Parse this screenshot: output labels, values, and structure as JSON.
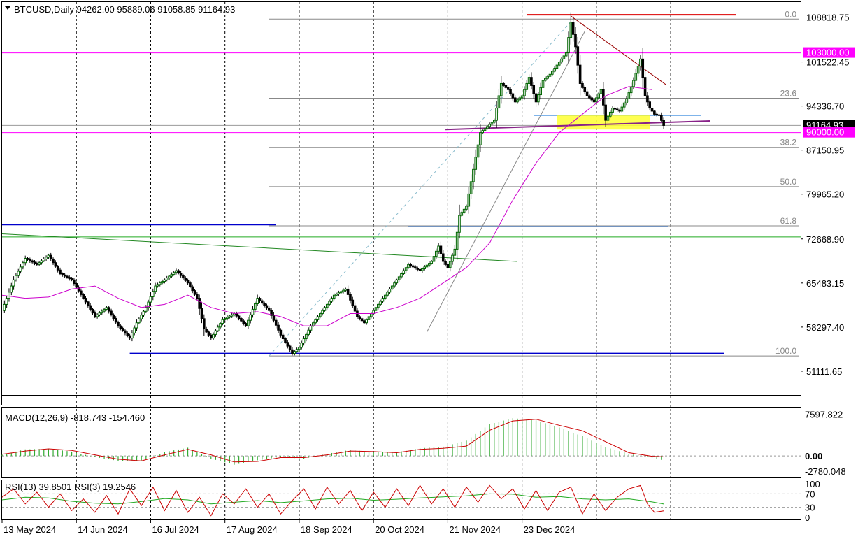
{
  "main": {
    "header": "BTCUSD,Daily  94262.00 95889.06 91058.85 91164.93"
  },
  "chart_data": [
    {
      "type": "candlestick",
      "symbol": "BTCUSD",
      "timeframe": "Daily",
      "ohlc_latest": {
        "open": 94262.0,
        "high": 95889.06,
        "low": 91058.85,
        "close": 91164.93
      },
      "y_ticks": [
        "108818.75",
        "101522.45",
        "94336.70",
        "87150.95",
        "79965.20",
        "72668.90",
        "65483.15",
        "58297.40",
        "51111.65"
      ],
      "ylim": [
        47800,
        110700
      ],
      "x_ticks": [
        "13 May 2024",
        "14 Jun 2024",
        "16 Jul 2024",
        "17 Aug 2024",
        "18 Sep 2024",
        "20 Oct 2024",
        "21 Nov 2024",
        "23 Dec 2024"
      ],
      "price_labels": [
        {
          "text": "103000.00",
          "value": 103000,
          "color": "#ff00ff",
          "role": "horizontal-level"
        },
        {
          "text": "91164.93",
          "value": 91164.93,
          "color": "#000000",
          "role": "last-price"
        },
        {
          "text": "90000.00",
          "value": 90000,
          "color": "#ff00ff",
          "role": "horizontal-level"
        }
      ],
      "fib_levels": [
        {
          "label": "0.0",
          "value": 108500
        },
        {
          "label": "23.6",
          "value": 95600
        },
        {
          "label": "38.2",
          "value": 87600
        },
        {
          "label": "50.0",
          "value": 81200
        },
        {
          "label": "61.8",
          "value": 74800
        },
        {
          "label": "100.0",
          "value": 53600
        }
      ],
      "close_path": [
        [
          0,
          61000
        ],
        [
          5,
          66000
        ],
        [
          10,
          69500
        ],
        [
          15,
          68500
        ],
        [
          20,
          70000
        ],
        [
          25,
          67000
        ],
        [
          30,
          66000
        ],
        [
          35,
          63000
        ],
        [
          40,
          60000
        ],
        [
          45,
          61500
        ],
        [
          50,
          58500
        ],
        [
          55,
          56500
        ],
        [
          58,
          59000
        ],
        [
          62,
          61500
        ],
        [
          66,
          65000
        ],
        [
          70,
          66000
        ],
        [
          75,
          67500
        ],
        [
          80,
          65500
        ],
        [
          84,
          63000
        ],
        [
          87,
          58000
        ],
        [
          90,
          56500
        ],
        [
          95,
          59500
        ],
        [
          100,
          60500
        ],
        [
          105,
          58500
        ],
        [
          110,
          63000
        ],
        [
          115,
          61000
        ],
        [
          120,
          57000
        ],
        [
          125,
          54000
        ],
        [
          128,
          55000
        ],
        [
          133,
          58500
        ],
        [
          138,
          61000
        ],
        [
          143,
          63500
        ],
        [
          148,
          64500
        ],
        [
          153,
          60000
        ],
        [
          156,
          59000
        ],
        [
          160,
          61000
        ],
        [
          165,
          63500
        ],
        [
          170,
          66000
        ],
        [
          175,
          68500
        ],
        [
          180,
          67500
        ],
        [
          185,
          69000
        ],
        [
          188,
          71500
        ],
        [
          190,
          69000
        ],
        [
          192,
          68000
        ],
        [
          195,
          71000
        ],
        [
          197,
          76500
        ],
        [
          200,
          78000
        ],
        [
          203,
          84000
        ],
        [
          206,
          90000
        ],
        [
          209,
          91000
        ],
        [
          212,
          92000
        ],
        [
          215,
          98000
        ],
        [
          218,
          97000
        ],
        [
          221,
          95000
        ],
        [
          224,
          96000
        ],
        [
          227,
          99000
        ],
        [
          230,
          95000
        ],
        [
          233,
          98500
        ],
        [
          236,
          99500
        ],
        [
          240,
          101500
        ],
        [
          243,
          103000
        ],
        [
          245,
          108000
        ],
        [
          247,
          104000
        ],
        [
          249,
          98000
        ],
        [
          252,
          96000
        ],
        [
          255,
          95000
        ],
        [
          258,
          97000
        ],
        [
          260,
          92000
        ],
        [
          263,
          94000
        ],
        [
          266,
          93500
        ],
        [
          269,
          95500
        ],
        [
          272,
          98500
        ],
        [
          275,
          102000
        ],
        [
          277,
          96000
        ],
        [
          279,
          94000
        ],
        [
          281,
          93000
        ],
        [
          283,
          92800
        ],
        [
          285,
          91164.93
        ]
      ],
      "sma_path": [
        [
          0,
          63500
        ],
        [
          10,
          63000
        ],
        [
          20,
          63200
        ],
        [
          30,
          64500
        ],
        [
          40,
          65000
        ],
        [
          50,
          63000
        ],
        [
          60,
          61500
        ],
        [
          70,
          62000
        ],
        [
          80,
          63500
        ],
        [
          90,
          61500
        ],
        [
          100,
          60500
        ],
        [
          110,
          60800
        ],
        [
          120,
          60000
        ],
        [
          130,
          58500
        ],
        [
          140,
          58500
        ],
        [
          150,
          60500
        ],
        [
          160,
          60500
        ],
        [
          170,
          61500
        ],
        [
          180,
          63000
        ],
        [
          190,
          65500
        ],
        [
          200,
          68000
        ],
        [
          210,
          72000
        ],
        [
          220,
          79000
        ],
        [
          230,
          85000
        ],
        [
          240,
          90000
        ],
        [
          250,
          93000
        ],
        [
          260,
          96000
        ],
        [
          270,
          97500
        ],
        [
          280,
          97000
        ]
      ],
      "ma_color": "#cc00cc",
      "candle_up_color": "#006400",
      "candle_down_color": "#000000",
      "highlight_zone": {
        "from": 90500,
        "to": 92800
      }
    },
    {
      "type": "bar",
      "name": "MACD(12,26,9) -818.743 -154.460",
      "params": "12,26,9",
      "main_value": -818.743,
      "signal_value": -154.46,
      "y_ticks": [
        "7597.822",
        "0.00",
        "-2780.048"
      ],
      "ylim": [
        -3300,
        8200
      ],
      "hist_color": "#33aa33",
      "signal_color": "#cc0000",
      "macd_path": [
        [
          0,
          200
        ],
        [
          10,
          1200
        ],
        [
          20,
          1300
        ],
        [
          30,
          800
        ],
        [
          40,
          -200
        ],
        [
          50,
          -900
        ],
        [
          60,
          -800
        ],
        [
          70,
          700
        ],
        [
          80,
          1500
        ],
        [
          90,
          -500
        ],
        [
          100,
          -1600
        ],
        [
          110,
          -800
        ],
        [
          120,
          -200
        ],
        [
          130,
          -500
        ],
        [
          140,
          400
        ],
        [
          150,
          1100
        ],
        [
          160,
          700
        ],
        [
          170,
          700
        ],
        [
          180,
          1400
        ],
        [
          190,
          1700
        ],
        [
          200,
          2800
        ],
        [
          210,
          5800
        ],
        [
          220,
          6900
        ],
        [
          230,
          6500
        ],
        [
          240,
          5200
        ],
        [
          250,
          3600
        ],
        [
          260,
          1600
        ],
        [
          270,
          400
        ],
        [
          280,
          -300
        ],
        [
          285,
          -818.743
        ]
      ],
      "signal_path": [
        [
          0,
          300
        ],
        [
          10,
          900
        ],
        [
          20,
          1300
        ],
        [
          30,
          1000
        ],
        [
          40,
          200
        ],
        [
          50,
          -600
        ],
        [
          60,
          -900
        ],
        [
          70,
          200
        ],
        [
          80,
          1200
        ],
        [
          90,
          200
        ],
        [
          100,
          -1100
        ],
        [
          110,
          -1000
        ],
        [
          120,
          -300
        ],
        [
          130,
          -300
        ],
        [
          140,
          200
        ],
        [
          150,
          900
        ],
        [
          160,
          800
        ],
        [
          170,
          600
        ],
        [
          180,
          1200
        ],
        [
          190,
          1400
        ],
        [
          200,
          1800
        ],
        [
          210,
          4700
        ],
        [
          220,
          6400
        ],
        [
          230,
          6700
        ],
        [
          240,
          5600
        ],
        [
          250,
          4600
        ],
        [
          260,
          2600
        ],
        [
          270,
          600
        ],
        [
          280,
          -50
        ],
        [
          285,
          -154.46
        ]
      ]
    },
    {
      "type": "line",
      "name": "RSI(13) 39.8501  RSI(3) 19.2546",
      "series": [
        {
          "name": "RSI(13)",
          "latest": 39.8501,
          "color": "#22aa22",
          "values": [
            [
              0,
              52
            ],
            [
              10,
              60
            ],
            [
              20,
              58
            ],
            [
              30,
              48
            ],
            [
              40,
              42
            ],
            [
              50,
              40
            ],
            [
              60,
              47
            ],
            [
              70,
              56
            ],
            [
              80,
              52
            ],
            [
              90,
              40
            ],
            [
              100,
              45
            ],
            [
              110,
              50
            ],
            [
              120,
              44
            ],
            [
              130,
              49
            ],
            [
              140,
              55
            ],
            [
              150,
              57
            ],
            [
              160,
              51
            ],
            [
              170,
              54
            ],
            [
              180,
              58
            ],
            [
              190,
              61
            ],
            [
              200,
              64
            ],
            [
              210,
              70
            ],
            [
              220,
              69
            ],
            [
              230,
              60
            ],
            [
              240,
              62
            ],
            [
              250,
              55
            ],
            [
              260,
              52
            ],
            [
              270,
              55
            ],
            [
              280,
              46
            ],
            [
              285,
              39.85
            ]
          ]
        },
        {
          "name": "RSI(3)",
          "latest": 19.2546,
          "color": "#cc0000",
          "values": [
            [
              0,
              60
            ],
            [
              5,
              85
            ],
            [
              10,
              40
            ],
            [
              15,
              75
            ],
            [
              20,
              30
            ],
            [
              25,
              70
            ],
            [
              30,
              20
            ],
            [
              35,
              55
            ],
            [
              40,
              15
            ],
            [
              45,
              65
            ],
            [
              50,
              10
            ],
            [
              55,
              85
            ],
            [
              60,
              35
            ],
            [
              65,
              90
            ],
            [
              70,
              20
            ],
            [
              75,
              80
            ],
            [
              80,
              15
            ],
            [
              85,
              60
            ],
            [
              90,
              5
            ],
            [
              95,
              70
            ],
            [
              100,
              40
            ],
            [
              105,
              85
            ],
            [
              110,
              30
            ],
            [
              115,
              70
            ],
            [
              120,
              10
            ],
            [
              125,
              50
            ],
            [
              130,
              85
            ],
            [
              135,
              25
            ],
            [
              140,
              90
            ],
            [
              145,
              40
            ],
            [
              150,
              80
            ],
            [
              155,
              20
            ],
            [
              160,
              75
            ],
            [
              165,
              30
            ],
            [
              170,
              85
            ],
            [
              175,
              35
            ],
            [
              180,
              95
            ],
            [
              185,
              40
            ],
            [
              190,
              85
            ],
            [
              195,
              30
            ],
            [
              200,
              90
            ],
            [
              205,
              45
            ],
            [
              210,
              95
            ],
            [
              215,
              55
            ],
            [
              220,
              85
            ],
            [
              225,
              25
            ],
            [
              230,
              80
            ],
            [
              235,
              20
            ],
            [
              240,
              75
            ],
            [
              245,
              90
            ],
            [
              250,
              10
            ],
            [
              255,
              70
            ],
            [
              260,
              20
            ],
            [
              265,
              60
            ],
            [
              270,
              85
            ],
            [
              275,
              95
            ],
            [
              278,
              40
            ],
            [
              281,
              15
            ],
            [
              285,
              19.25
            ]
          ]
        }
      ],
      "y_ticks": [
        "100",
        "70",
        "30",
        "0"
      ],
      "ylim": [
        0,
        100
      ]
    }
  ]
}
